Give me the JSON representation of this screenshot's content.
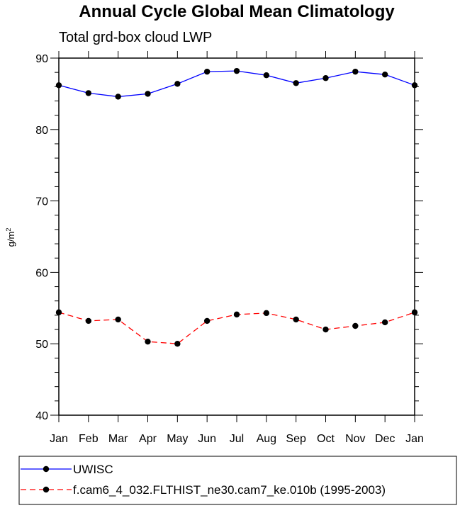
{
  "chart_data": {
    "type": "line",
    "title": "Annual Cycle Global Mean Climatology",
    "subtitle": "Total grd-box cloud LWP",
    "xlabel": "",
    "ylabel": "g/m",
    "ylabel_sup": "2",
    "categories": [
      "Jan",
      "Feb",
      "Mar",
      "Apr",
      "May",
      "Jun",
      "Jul",
      "Aug",
      "Sep",
      "Oct",
      "Nov",
      "Dec",
      "Jan"
    ],
    "ylim": [
      40,
      90
    ],
    "yticks": [
      40,
      50,
      60,
      70,
      80,
      90
    ],
    "grid": false,
    "legend": "bottom",
    "series": [
      {
        "name": "UWISC",
        "color": "#0000ff",
        "line_style": "solid",
        "marker": "filled-circle",
        "values": [
          86.2,
          85.1,
          84.6,
          85.0,
          86.4,
          88.1,
          88.2,
          87.6,
          86.5,
          87.2,
          88.1,
          87.7,
          86.2
        ]
      },
      {
        "name": "f.cam6_4_032.FLTHIST_ne30.cam7_ke.010b (1995-2003)",
        "color": "#ff0000",
        "line_style": "dashed",
        "marker": "filled-circle",
        "values": [
          54.4,
          53.2,
          53.4,
          50.3,
          50.0,
          53.2,
          54.1,
          54.3,
          53.4,
          52.0,
          52.5,
          53.0,
          54.4
        ]
      }
    ]
  }
}
